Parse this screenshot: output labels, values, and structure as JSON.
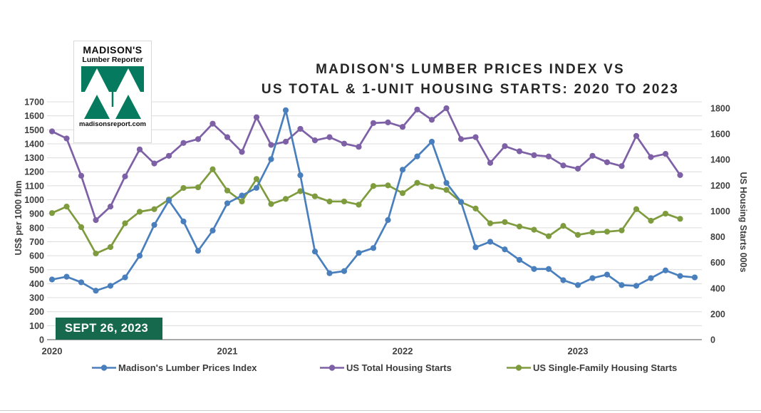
{
  "header": {
    "title_line1": "MADISON'S LUMBER PRICES INDEX VS",
    "title_line2": "US TOTAL & 1-UNIT HOUSING STARTS: 2020 TO 2023"
  },
  "logo": {
    "name": "MADISON'S",
    "subtitle": "Lumber Reporter",
    "website": "madisonsreport.com",
    "green": "#067a5e"
  },
  "date_badge": "SEPT 26, 2023",
  "colors": {
    "lumber_blue": "#4a7fbd",
    "total_purple": "#7d60a6",
    "single_family_green": "#7e9b3e",
    "gridline": "#dcdcdc",
    "axis_line": "#a9a9a9",
    "tick_text": "#3f3f3f",
    "badge_green": "#17694e"
  },
  "chart_data": {
    "type": "line",
    "title": "Madison's Lumber Prices Index vs US Total & 1-Unit Housing Starts: 2020 to 2023",
    "x_tick_labels": [
      "2020",
      "2021",
      "2022",
      "2023"
    ],
    "months": [
      "Jan 2020",
      "Feb 2020",
      "Mar 2020",
      "Apr 2020",
      "May 2020",
      "Jun 2020",
      "Jul 2020",
      "Aug 2020",
      "Sep 2020",
      "Oct 2020",
      "Nov 2020",
      "Dec 2020",
      "Jan 2021",
      "Feb 2021",
      "Mar 2021",
      "Apr 2021",
      "May 2021",
      "Jun 2021",
      "Jul 2021",
      "Aug 2021",
      "Sep 2021",
      "Oct 2021",
      "Nov 2021",
      "Dec 2021",
      "Jan 2022",
      "Feb 2022",
      "Mar 2022",
      "Apr 2022",
      "May 2022",
      "Jun 2022",
      "Jul 2022",
      "Aug 2022",
      "Sep 2022",
      "Oct 2022",
      "Nov 2022",
      "Dec 2022",
      "Jan 2023",
      "Feb 2023",
      "Mar 2023",
      "Apr 2023",
      "May 2023",
      "Jun 2023",
      "Jul 2023",
      "Aug 2023",
      "Sep 2023"
    ],
    "left_axis": {
      "label": "US$ per 1000 fbm",
      "min": 0,
      "max": 1700,
      "step": 100
    },
    "right_axis": {
      "label": "US Housing Starts 000s",
      "min": 0,
      "max": 1800,
      "step": 200,
      "plot_max": 1850
    },
    "grid": true,
    "legend_position": "bottom",
    "series": [
      {
        "name": "Madison's Lumber Prices Index",
        "axis": "left",
        "color": "#4a7fbd",
        "values": [
          430,
          450,
          410,
          350,
          385,
          445,
          600,
          820,
          995,
          845,
          635,
          780,
          975,
          1030,
          1085,
          1290,
          1640,
          1175,
          630,
          475,
          490,
          620,
          655,
          855,
          1215,
          1310,
          1415,
          1120,
          985,
          660,
          700,
          645,
          570,
          505,
          505,
          425,
          390,
          440,
          465,
          390,
          385,
          440,
          495,
          455,
          445
        ]
      },
      {
        "name": "US Total Housing Starts",
        "axis": "right",
        "color": "#7d60a6",
        "values": [
          1620,
          1565,
          1275,
          930,
          1035,
          1270,
          1480,
          1370,
          1430,
          1530,
          1560,
          1680,
          1575,
          1460,
          1730,
          1515,
          1540,
          1640,
          1550,
          1575,
          1525,
          1500,
          1685,
          1690,
          1655,
          1790,
          1710,
          1800,
          1560,
          1575,
          1375,
          1505,
          1465,
          1435,
          1425,
          1355,
          1330,
          1430,
          1380,
          1350,
          1585,
          1420,
          1445,
          1280
        ]
      },
      {
        "name": "US Single-Family Housing Starts",
        "axis": "right",
        "color": "#7e9b3e",
        "values": [
          985,
          1035,
          875,
          670,
          720,
          905,
          995,
          1015,
          1090,
          1180,
          1185,
          1325,
          1160,
          1075,
          1250,
          1055,
          1095,
          1155,
          1115,
          1075,
          1075,
          1050,
          1195,
          1200,
          1140,
          1220,
          1190,
          1165,
          1070,
          1020,
          905,
          915,
          880,
          855,
          805,
          885,
          815,
          835,
          840,
          850,
          1015,
          925,
          980,
          940
        ]
      }
    ]
  }
}
